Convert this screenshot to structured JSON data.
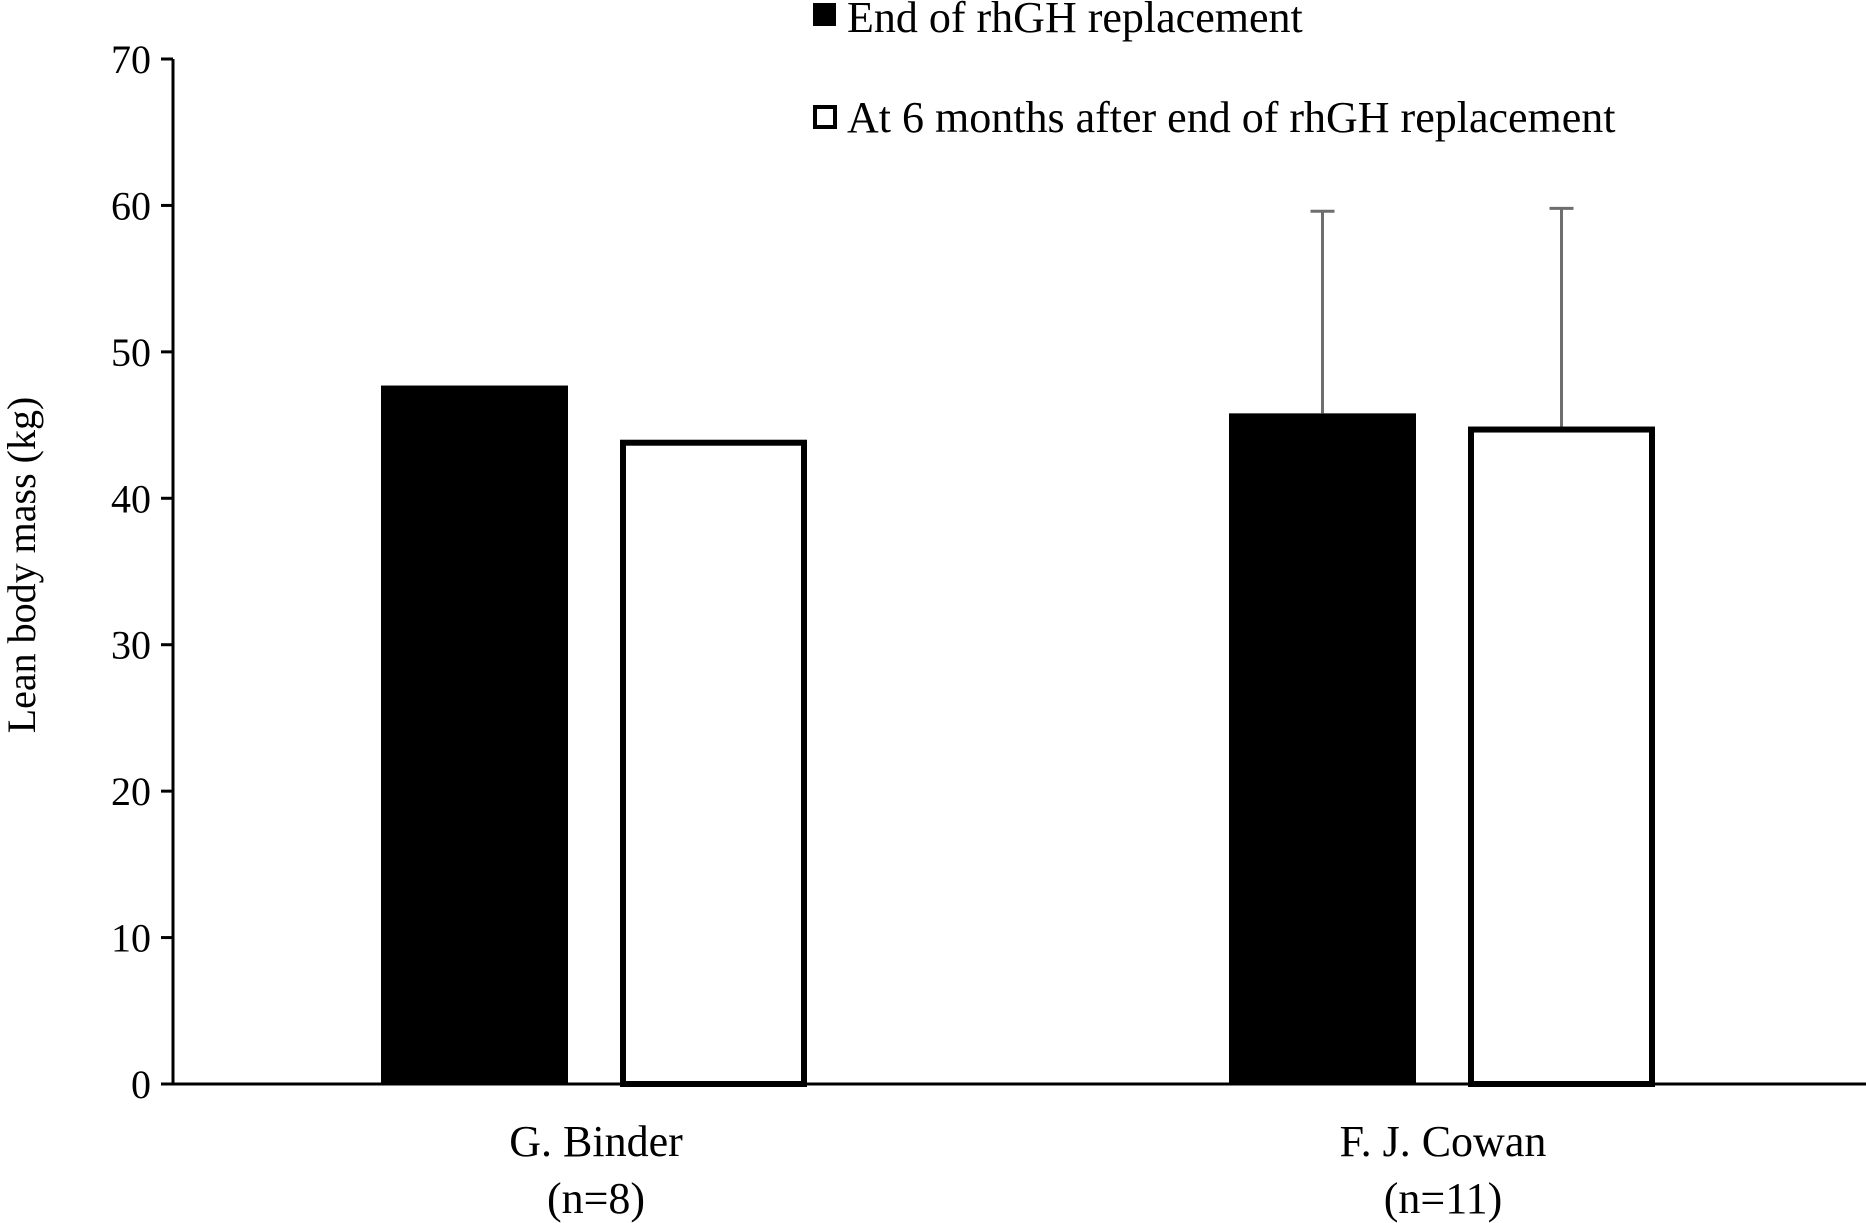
{
  "chart_data": {
    "type": "bar",
    "title": "",
    "ylabel": "Lean body mass (kg)",
    "xlabel": "",
    "categories": [
      {
        "name": "G. Binder",
        "n": "(n=8)"
      },
      {
        "name": "F. J. Cowan",
        "n": "(n=11)"
      }
    ],
    "series": [
      {
        "name": "End of rhGH replacement",
        "fill": "#000000",
        "values": [
          47.7,
          45.8
        ],
        "error_upper": [
          null,
          59.6
        ]
      },
      {
        "name": "At 6 months after end of rhGH replacement",
        "fill": "#ffffff",
        "values": [
          44.0,
          44.9
        ],
        "error_upper": [
          null,
          59.8
        ]
      }
    ],
    "ylim": [
      0,
      70
    ],
    "yticks": [
      "0",
      "10",
      "20",
      "30",
      "40",
      "50",
      "60",
      "70"
    ],
    "grid": false,
    "legend_position": "top-right"
  }
}
